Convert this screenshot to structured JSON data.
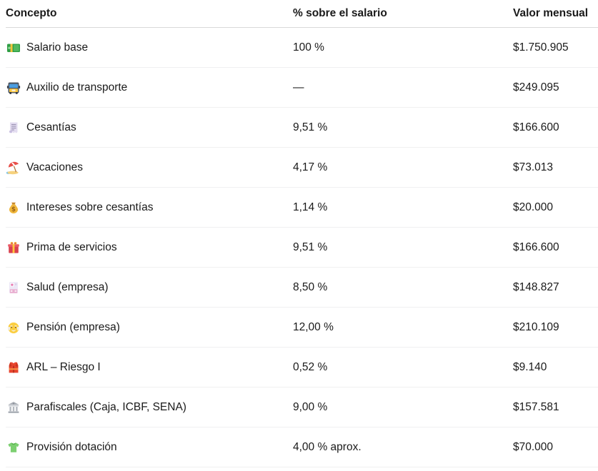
{
  "table": {
    "headers": {
      "concept": "Concepto",
      "percent": "% sobre el salario",
      "amount": "Valor mensual"
    },
    "rows": [
      {
        "icon": "money-banknote-icon",
        "concept": "Salario base",
        "percent": "100 %",
        "amount": "$1.750.905"
      },
      {
        "icon": "bus-icon",
        "concept": "Auxilio de transporte",
        "percent": "—",
        "amount": "$249.095"
      },
      {
        "icon": "receipt-icon",
        "concept": "Cesantías",
        "percent": "9,51 %",
        "amount": "$166.600"
      },
      {
        "icon": "beach-umbrella-icon",
        "concept": "Vacaciones",
        "percent": "4,17 %",
        "amount": "$73.013"
      },
      {
        "icon": "money-bag-icon",
        "concept": "Intereses sobre cesantías",
        "percent": "1,14 %",
        "amount": "$20.000"
      },
      {
        "icon": "gift-icon",
        "concept": "Prima de servicios",
        "percent": "9,51 %",
        "amount": "$166.600"
      },
      {
        "icon": "hospital-icon",
        "concept": "Salud (empresa)",
        "percent": "8,50 %",
        "amount": "$148.827"
      },
      {
        "icon": "older-man-icon",
        "concept": "Pensión (empresa)",
        "percent": "12,00 %",
        "amount": "$210.109"
      },
      {
        "icon": "safety-vest-icon",
        "concept": "ARL – Riesgo I",
        "percent": "0,52 %",
        "amount": "$9.140"
      },
      {
        "icon": "classical-building-icon",
        "concept": "Parafiscales (Caja, ICBF, SENA)",
        "percent": "9,00 %",
        "amount": "$157.581"
      },
      {
        "icon": "t-shirt-icon",
        "concept": "Provisión dotación",
        "percent": "4,00 % aprox.",
        "amount": "$70.000"
      }
    ],
    "colors": {
      "text": "#1a1a1a",
      "header_border": "#d9d9d9",
      "row_border": "#f0f0f1",
      "background": "#ffffff"
    }
  }
}
